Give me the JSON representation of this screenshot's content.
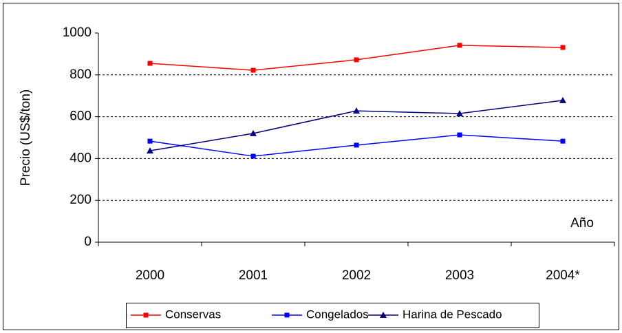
{
  "chart_data": {
    "type": "line",
    "categories": [
      "2000",
      "2001",
      "2002",
      "2003",
      "2004*"
    ],
    "series": [
      {
        "name": "Conservas",
        "color": "#ff0000",
        "marker": "square",
        "values": [
          855,
          822,
          872,
          941,
          931
        ]
      },
      {
        "name": "Congelados",
        "color": "#0000ff",
        "marker": "square",
        "values": [
          483,
          411,
          464,
          513,
          483
        ]
      },
      {
        "name": "Harina de Pescado",
        "color": "#000080",
        "marker": "triangle",
        "values": [
          437,
          520,
          628,
          615,
          678
        ]
      }
    ],
    "ylabel": "Precio (US$/ton)",
    "annotation": "Año",
    "ylim": [
      0,
      1000
    ],
    "yticks": [
      0,
      200,
      400,
      600,
      800,
      1000
    ],
    "grid": true,
    "legend": "bottom"
  }
}
